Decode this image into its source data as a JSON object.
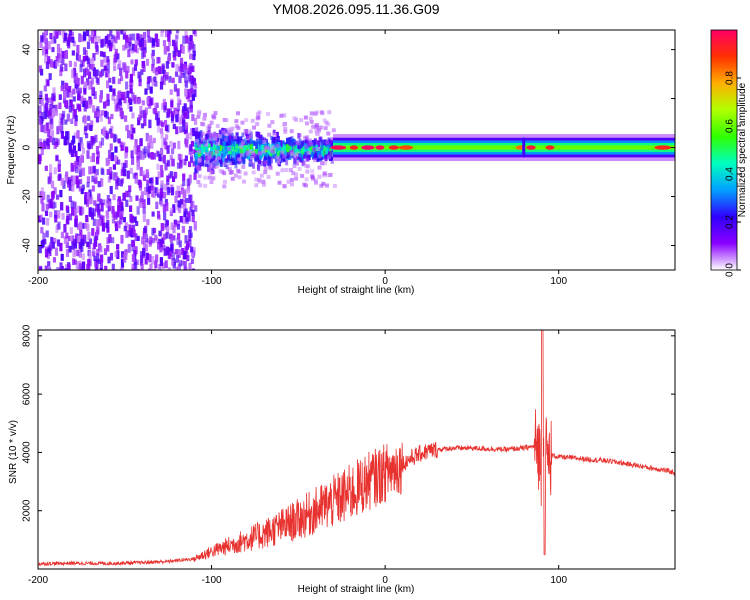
{
  "chart_data": [
    {
      "type": "heatmap",
      "title": "YM08.2026.095.11.36.G09",
      "xlabel": "Height of straight line (km)",
      "ylabel": "Frequency (Hz)",
      "xlim": [
        -200,
        167
      ],
      "ylim": [
        -50,
        48
      ],
      "xticks": [
        -200,
        -100,
        0,
        100
      ],
      "yticks": [
        -40,
        -20,
        0,
        20,
        40
      ],
      "colorbar": {
        "label": "Normalized spectral amplitude",
        "range": [
          0,
          1
        ],
        "ticks": [
          0.0,
          0.2,
          0.4,
          0.6,
          0.8
        ],
        "tick_labels": [
          "0.0",
          "0.2",
          "0.4",
          "0.6",
          "0.8"
        ],
        "colors": [
          "#ffffff",
          "#8a00ff",
          "#3000ff",
          "#00a0ff",
          "#00ffc0",
          "#30ff00",
          "#b0ff00",
          "#ffb000",
          "#ff3000",
          "#ff0066"
        ]
      },
      "regions": [
        {
          "name": "scatter noise",
          "x": [
            -200,
            -110
          ],
          "freq_spread": 50,
          "amplitude": [
            0.05,
            0.2
          ]
        },
        {
          "name": "transition",
          "x": [
            -110,
            -30
          ],
          "freq_spread": 12,
          "amplitude": [
            0.15,
            0.45
          ]
        },
        {
          "name": "carrier line",
          "x": [
            -30,
            167
          ],
          "freq_center": 0,
          "freq_halfwidth": 2.5,
          "amplitude": [
            0.5,
            1.0
          ]
        }
      ]
    },
    {
      "type": "line",
      "title": "",
      "xlabel": "Height of straight line (km)",
      "ylabel": "SNR (10 * v/v)",
      "xlim": [
        -200,
        167
      ],
      "ylim": [
        0,
        8200
      ],
      "xticks": [
        -200,
        -100,
        0,
        100
      ],
      "yticks": [
        2000,
        4000,
        6000,
        8000
      ],
      "series": [
        {
          "name": "SNR",
          "color": "#e8322f",
          "x": [
            -200,
            -180,
            -160,
            -140,
            -125,
            -110,
            -100,
            -90,
            -80,
            -70,
            -60,
            -50,
            -40,
            -30,
            -25,
            -20,
            -15,
            -10,
            -5,
            0,
            5,
            10,
            15,
            20,
            25,
            30,
            40,
            50,
            60,
            70,
            80,
            85,
            88,
            90,
            91,
            92,
            94,
            96,
            100,
            110,
            120,
            130,
            140,
            150,
            160,
            167
          ],
          "values": [
            180,
            200,
            190,
            220,
            260,
            350,
            600,
            800,
            1000,
            1200,
            1450,
            1700,
            2000,
            2300,
            2450,
            2600,
            2800,
            3000,
            3150,
            3300,
            3450,
            3600,
            3800,
            3950,
            4050,
            4100,
            4150,
            4150,
            4120,
            4100,
            4150,
            4200,
            4200,
            3500,
            5000,
            4100,
            3700,
            3900,
            3850,
            3800,
            3750,
            3700,
            3600,
            3500,
            3400,
            3300
          ]
        }
      ]
    }
  ]
}
